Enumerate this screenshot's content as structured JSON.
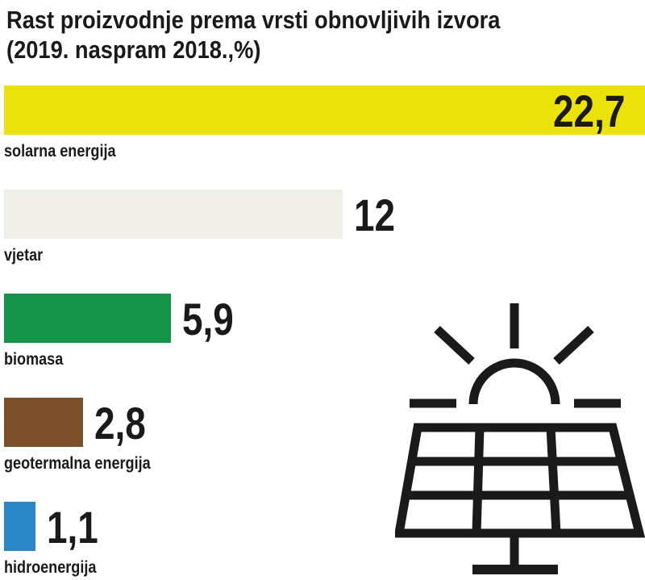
{
  "chart_data": {
    "type": "bar",
    "orientation": "horizontal",
    "title": "Rast proizvodnje prema vrsti obnovljivih izvora (2019. naspram 2018.,%)",
    "categories": [
      "solarna energija",
      "vjetar",
      "biomasa",
      "geotermalna energija",
      "hidroenergija"
    ],
    "values": [
      22.7,
      12,
      5.9,
      2.8,
      1.1
    ],
    "value_labels": [
      "22,7",
      "12",
      "5,9",
      "2,8",
      "1,1"
    ],
    "colors": [
      "#ebe20b",
      "#efeee7",
      "#16934a",
      "#7a4f29",
      "#2a86c6"
    ],
    "xlim": [
      0,
      22.7
    ],
    "grid": false,
    "legend": "none"
  },
  "decoration": {
    "icon": "solar-panel-sun-icon",
    "color": "#1a1a1a"
  }
}
